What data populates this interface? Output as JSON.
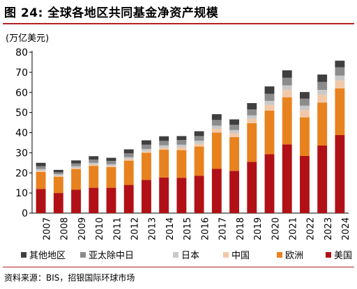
{
  "figure": {
    "title": "图 24: 全球各地区共同基金净资产规模",
    "source": "资料来源：BIS，招银国际环球市场"
  },
  "colors": {
    "accent": "#b22222"
  },
  "chart_data": {
    "type": "bar",
    "stacked": true,
    "unit_label": "(万亿美元)",
    "categories": [
      "2007",
      "2008",
      "2009",
      "2010",
      "2011",
      "2012",
      "2013",
      "2014",
      "2015",
      "2016",
      "2017",
      "2018",
      "2019",
      "2020",
      "2021",
      "2022",
      "2023",
      "2024"
    ],
    "ylim": [
      0,
      80
    ],
    "yticks": [
      0,
      10,
      20,
      30,
      40,
      50,
      60,
      70,
      80
    ],
    "grid": false,
    "legend_position": "bottom",
    "series": [
      {
        "name": "美国",
        "color": "#b11116",
        "values": [
          12.0,
          10.0,
          11.6,
          12.6,
          12.6,
          14.0,
          16.5,
          17.7,
          17.5,
          18.6,
          22.0,
          21.0,
          25.5,
          29.3,
          34.2,
          28.4,
          33.6,
          38.8
        ]
      },
      {
        "name": "欧洲",
        "color": "#e8821e",
        "values": [
          8.5,
          8.1,
          10.3,
          10.9,
          10.3,
          12.1,
          13.5,
          13.8,
          13.8,
          14.5,
          18.0,
          16.8,
          19.2,
          21.7,
          23.4,
          19.2,
          21.4,
          23.2
        ]
      },
      {
        "name": "中国",
        "color": "#f2c9a8",
        "values": [
          0.5,
          0.5,
          0.6,
          0.6,
          0.6,
          0.7,
          0.7,
          0.9,
          1.4,
          1.4,
          1.9,
          2.0,
          2.2,
          2.8,
          3.6,
          3.6,
          3.9,
          3.9
        ]
      },
      {
        "name": "日本",
        "color": "#c9c9c9",
        "values": [
          0.9,
          0.7,
          0.8,
          0.9,
          0.8,
          1.0,
          1.2,
          1.3,
          1.3,
          1.5,
          1.6,
          1.5,
          1.7,
          2.0,
          2.3,
          2.2,
          2.4,
          2.5
        ]
      },
      {
        "name": "亚太除中日",
        "color": "#8c8c8c",
        "values": [
          1.4,
          1.0,
          1.4,
          1.6,
          1.6,
          1.9,
          2.1,
          2.2,
          2.3,
          2.3,
          2.8,
          2.6,
          3.0,
          3.5,
          3.8,
          3.5,
          3.9,
          4.1
        ]
      },
      {
        "name": "其他地区",
        "color": "#3f3f3f",
        "values": [
          1.7,
          1.2,
          1.5,
          1.7,
          1.6,
          2.0,
          2.2,
          2.3,
          2.0,
          2.4,
          2.9,
          2.7,
          3.1,
          3.7,
          3.7,
          3.3,
          3.7,
          3.3
        ]
      }
    ]
  }
}
